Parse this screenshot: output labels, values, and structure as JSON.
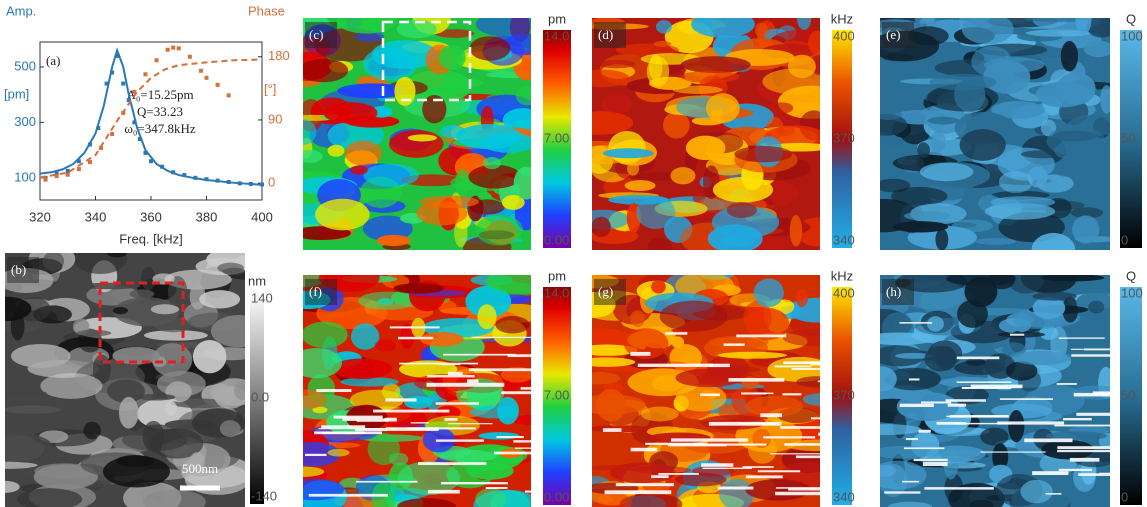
{
  "chart_data": {
    "type": "line",
    "panel_label": "(a)",
    "y_label": "Amp.",
    "y_unit": "[pm]",
    "y2_label": "Phase",
    "y2_unit": "[°]",
    "xlabel": "Freq. [kHz]",
    "annotations": [
      "A₀=15.25pm",
      "Q=33.23",
      "ω₀=347.8kHz"
    ],
    "xlim": [
      320,
      400
    ],
    "xticks": [
      320,
      340,
      360,
      380,
      400
    ],
    "ylim": [
      20,
      590
    ],
    "yticks": [
      100,
      300,
      500
    ],
    "y2lim": [
      -24,
      201
    ],
    "y2ticks": [
      0,
      90,
      180
    ],
    "series": [
      {
        "kind": "line",
        "color": "#2a78b4",
        "x": [
          320,
          324,
          328,
          332,
          336,
          340,
          343,
          346,
          347.8,
          350,
          352,
          355,
          358,
          362,
          366,
          370,
          375,
          380,
          390,
          400
        ],
        "values": [
          115,
          120,
          130,
          150,
          190,
          260,
          360,
          500,
          560,
          500,
          400,
          280,
          200,
          150,
          125,
          110,
          100,
          92,
          82,
          75
        ]
      },
      {
        "kind": "points",
        "color": "#2a78b4",
        "x": [
          322,
          326,
          330,
          334,
          338,
          341,
          344,
          346,
          348,
          350,
          352,
          354,
          356,
          358,
          360,
          364,
          368,
          372,
          376,
          380,
          384,
          388,
          392,
          396,
          400
        ],
        "values": [
          100,
          115,
          125,
          160,
          220,
          280,
          440,
          480,
          540,
          440,
          380,
          300,
          240,
          190,
          160,
          140,
          120,
          110,
          100,
          95,
          90,
          85,
          80,
          78,
          76
        ]
      },
      {
        "kind": "line",
        "dashed": true,
        "axis": "y2",
        "color": "#d4703a",
        "x": [
          320,
          330,
          340,
          348,
          355,
          360,
          365,
          370,
          380,
          390,
          400
        ],
        "values": [
          8,
          15,
          40,
          90,
          130,
          150,
          162,
          168,
          172,
          175,
          176
        ]
      },
      {
        "kind": "points",
        "axis": "y2",
        "color": "#d4703a",
        "x": [
          322,
          326,
          330,
          334,
          338,
          342,
          346,
          350,
          354,
          358,
          362,
          366,
          368,
          370,
          374,
          378,
          380,
          384,
          388
        ],
        "values": [
          5,
          10,
          12,
          20,
          30,
          50,
          70,
          100,
          130,
          155,
          175,
          190,
          193,
          192,
          180,
          160,
          150,
          140,
          125
        ]
      }
    ]
  },
  "panels": [
    {
      "label": "(b)",
      "colorbar": {
        "unit": "nm",
        "labels": [
          "140",
          "0.0",
          "-140"
        ]
      },
      "scale_bar": "500nm"
    },
    {
      "label": "(c)",
      "colorbar": {
        "unit": "pm",
        "labels": [
          "14.0",
          "7.00",
          "0.00"
        ]
      }
    },
    {
      "label": "(d)",
      "colorbar": {
        "unit": "kHz",
        "labels": [
          "400",
          "370",
          "340"
        ]
      }
    },
    {
      "label": "(e)",
      "colorbar": {
        "unit": "Q",
        "labels": [
          "100",
          "50",
          "0"
        ]
      }
    },
    {
      "label": "(f)",
      "colorbar": {
        "unit": "pm",
        "labels": [
          "14.0",
          "7.00",
          "0.00"
        ]
      }
    },
    {
      "label": "(g)",
      "colorbar": {
        "unit": "kHz",
        "labels": [
          "400",
          "370",
          "340"
        ]
      }
    },
    {
      "label": "(h)",
      "colorbar": {
        "unit": "Q",
        "labels": [
          "100",
          "50",
          "0"
        ]
      }
    }
  ]
}
